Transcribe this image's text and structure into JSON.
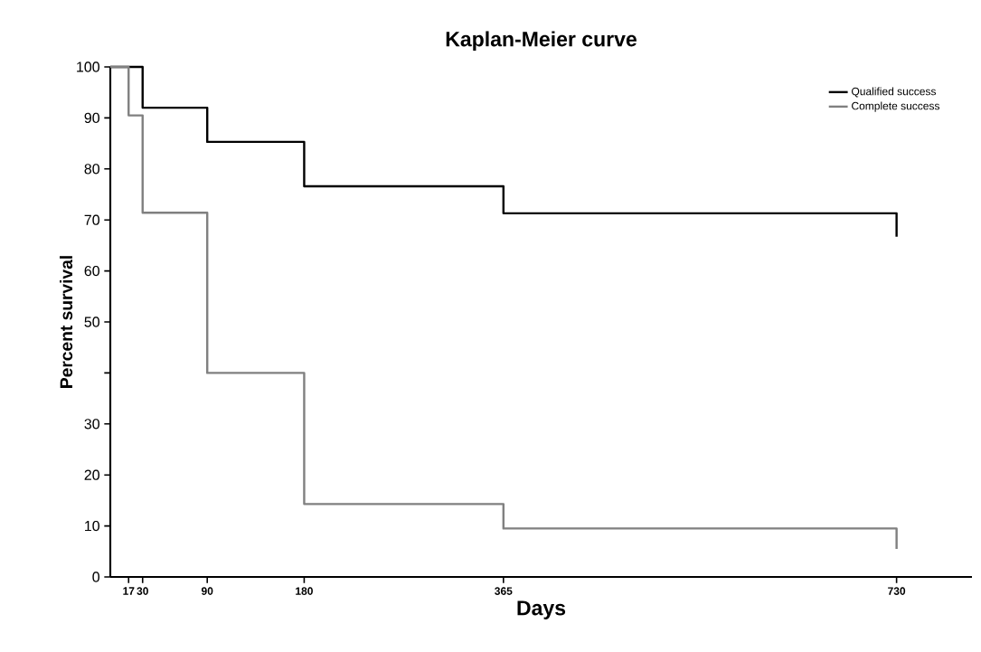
{
  "chart_data": {
    "type": "step",
    "title": "Kaplan-Meier curve",
    "xlabel": "Days",
    "ylabel": "Percent survival",
    "xlim": [
      0,
      800
    ],
    "xticks": [
      17,
      30,
      90,
      180,
      365,
      730
    ],
    "ylim": [
      0,
      100
    ],
    "yticks": [
      0,
      10,
      20,
      30,
      {
        "value": 40,
        "label": null
      },
      50,
      60,
      70,
      80,
      90,
      100
    ],
    "grid": false,
    "legend": "top right",
    "marker": "none",
    "line_style": "solid",
    "series": [
      {
        "name": "Qualified success",
        "color": "#000000",
        "x": [
          0,
          30,
          90,
          180,
          365,
          730
        ],
        "values": [
          100,
          92,
          85.3,
          76.6,
          71.3,
          66.7
        ]
      },
      {
        "name": "Complete success",
        "color": "#808080",
        "x": [
          0,
          17,
          30,
          90,
          180,
          365,
          730
        ],
        "values": [
          100,
          90.5,
          71.4,
          40,
          14.3,
          9.5,
          5.5
        ]
      }
    ]
  }
}
